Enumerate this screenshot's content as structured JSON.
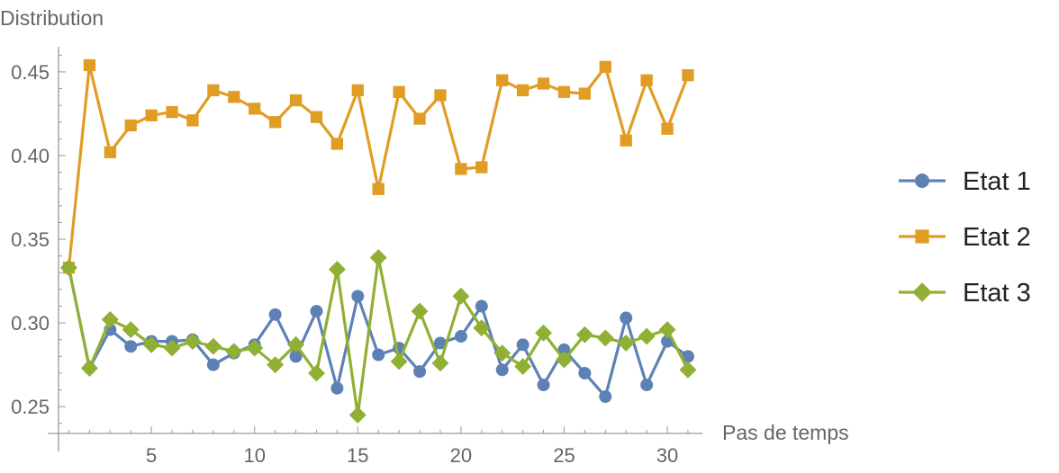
{
  "chart_data": {
    "type": "line",
    "xlabel": "Pas de temps",
    "ylabel": "Distribution",
    "xlim": [
      0.5,
      31.7
    ],
    "ylim": [
      0.234,
      0.465
    ],
    "x_ticks": [
      5,
      10,
      15,
      20,
      25,
      30
    ],
    "y_ticks": [
      0.25,
      0.3,
      0.35,
      0.4,
      0.45
    ],
    "grid": false,
    "legend_position": "right",
    "x": [
      1,
      2,
      3,
      4,
      5,
      6,
      7,
      8,
      9,
      10,
      11,
      12,
      13,
      14,
      15,
      16,
      17,
      18,
      19,
      20,
      21,
      22,
      23,
      24,
      25,
      26,
      27,
      28,
      29,
      30,
      31
    ],
    "series": [
      {
        "name": "Etat 1",
        "color": "#5e81b5",
        "marker": "circle",
        "values": [
          0.333,
          0.273,
          0.296,
          0.286,
          0.289,
          0.289,
          0.29,
          0.275,
          0.282,
          0.287,
          0.305,
          0.28,
          0.307,
          0.261,
          0.316,
          0.281,
          0.285,
          0.271,
          0.288,
          0.292,
          0.31,
          0.272,
          0.287,
          0.263,
          0.284,
          0.27,
          0.256,
          0.303,
          0.263,
          0.289,
          0.28
        ]
      },
      {
        "name": "Etat 2",
        "color": "#e19c24",
        "marker": "square",
        "values": [
          0.333,
          0.454,
          0.402,
          0.418,
          0.424,
          0.426,
          0.421,
          0.439,
          0.435,
          0.428,
          0.42,
          0.433,
          0.423,
          0.407,
          0.439,
          0.38,
          0.438,
          0.422,
          0.436,
          0.392,
          0.393,
          0.445,
          0.439,
          0.443,
          0.438,
          0.437,
          0.453,
          0.409,
          0.445,
          0.416,
          0.448
        ]
      },
      {
        "name": "Etat 3",
        "color": "#8fb032",
        "marker": "diamond",
        "values": [
          0.333,
          0.273,
          0.302,
          0.296,
          0.287,
          0.285,
          0.289,
          0.286,
          0.283,
          0.285,
          0.275,
          0.287,
          0.27,
          0.332,
          0.245,
          0.339,
          0.277,
          0.307,
          0.276,
          0.316,
          0.297,
          0.282,
          0.274,
          0.294,
          0.278,
          0.293,
          0.291,
          0.288,
          0.292,
          0.296,
          0.272
        ]
      }
    ]
  }
}
